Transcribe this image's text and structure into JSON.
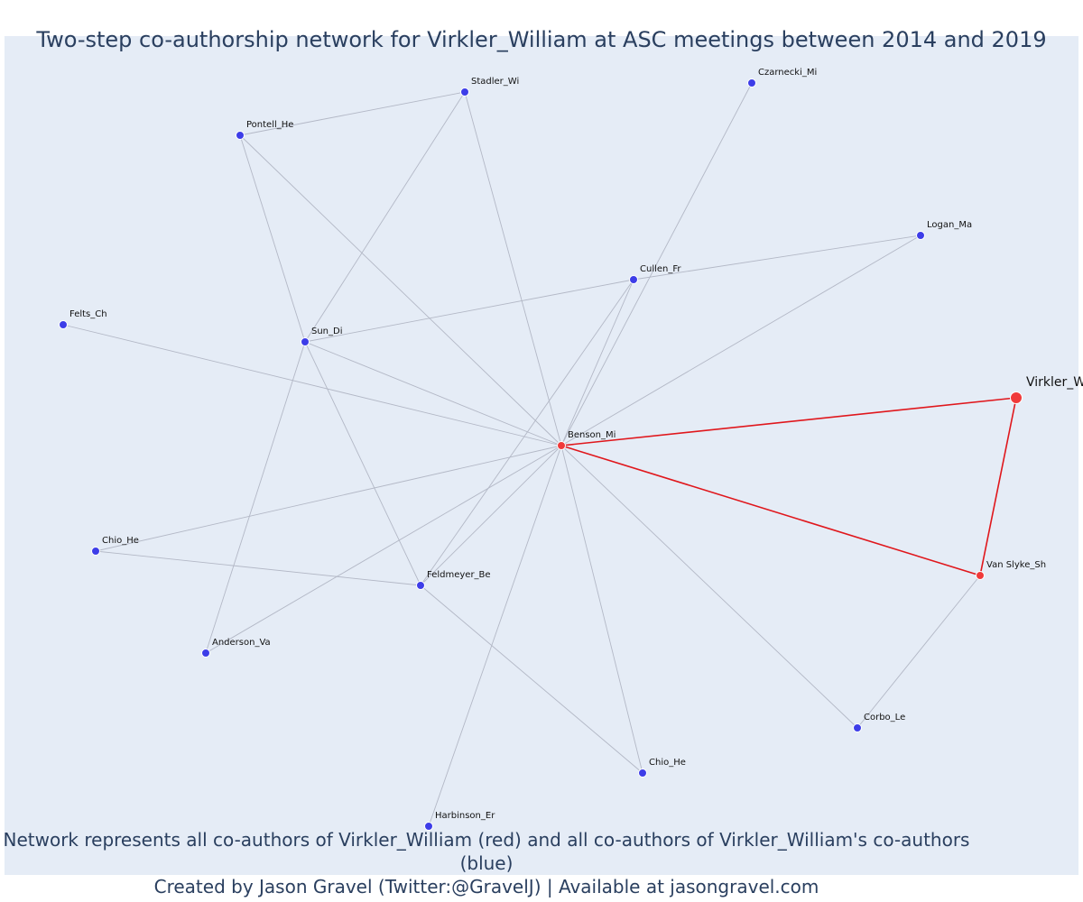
{
  "title": "Two-step co-authorship network for Virkler_William at ASC meetings between 2014 and 2019",
  "caption": {
    "line1": "Network represents all co-authors of Virkler_William (red) and all co-authors of Virkler_William's co-authors (blue)",
    "line2": "Created by Jason Gravel (Twitter:@GravelJ) | Available at jasongravel.com"
  },
  "colors": {
    "background": "#e5ecf6",
    "coauthor_node": "#3d3de8",
    "focal_node": "#f03a3a",
    "edge": "#b3b8c6",
    "focal_edge": "#e0171c",
    "title": "#2a3f5f"
  },
  "nodes": [
    {
      "id": "virkler",
      "label": "Virkler_William",
      "group": "focal"
    },
    {
      "id": "benson",
      "label": "Benson_Mi",
      "group": "coauthor"
    },
    {
      "id": "vanslyke",
      "label": "Van Slyke_Sh",
      "group": "coauthor"
    },
    {
      "id": "stadler",
      "label": "Stadler_Wi",
      "group": "second"
    },
    {
      "id": "czarnecki",
      "label": "Czarnecki_Mi",
      "group": "second"
    },
    {
      "id": "pontell",
      "label": "Pontell_He",
      "group": "second"
    },
    {
      "id": "logan",
      "label": "Logan_Ma",
      "group": "second"
    },
    {
      "id": "cullen",
      "label": "Cullen_Fr",
      "group": "second"
    },
    {
      "id": "felts",
      "label": "Felts_Ch",
      "group": "second"
    },
    {
      "id": "sun",
      "label": "Sun_Di",
      "group": "second"
    },
    {
      "id": "chio1",
      "label": "Chio_He",
      "group": "second"
    },
    {
      "id": "feldmeyer",
      "label": "Feldmeyer_Be",
      "group": "second"
    },
    {
      "id": "anderson",
      "label": "Anderson_Va",
      "group": "second"
    },
    {
      "id": "corbo",
      "label": "Corbo_Le",
      "group": "second"
    },
    {
      "id": "chio2",
      "label": "Chio_He",
      "group": "second"
    },
    {
      "id": "harbinson",
      "label": "Harbinson_Er",
      "group": "second"
    }
  ],
  "edges": [
    [
      "virkler",
      "benson"
    ],
    [
      "virkler",
      "vanslyke"
    ],
    [
      "benson",
      "vanslyke"
    ],
    [
      "vanslyke",
      "corbo"
    ],
    [
      "benson",
      "stadler"
    ],
    [
      "benson",
      "pontell"
    ],
    [
      "benson",
      "czarnecki"
    ],
    [
      "benson",
      "logan"
    ],
    [
      "benson",
      "cullen"
    ],
    [
      "benson",
      "felts"
    ],
    [
      "benson",
      "sun"
    ],
    [
      "benson",
      "chio1"
    ],
    [
      "benson",
      "feldmeyer"
    ],
    [
      "benson",
      "anderson"
    ],
    [
      "benson",
      "corbo"
    ],
    [
      "benson",
      "chio2"
    ],
    [
      "benson",
      "harbinson"
    ],
    [
      "pontell",
      "stadler"
    ],
    [
      "pontell",
      "sun"
    ],
    [
      "stadler",
      "sun"
    ],
    [
      "sun",
      "cullen"
    ],
    [
      "cullen",
      "logan"
    ],
    [
      "cullen",
      "feldmeyer"
    ],
    [
      "sun",
      "feldmeyer"
    ],
    [
      "sun",
      "anderson"
    ],
    [
      "chio1",
      "feldmeyer"
    ],
    [
      "feldmeyer",
      "chio2"
    ]
  ]
}
